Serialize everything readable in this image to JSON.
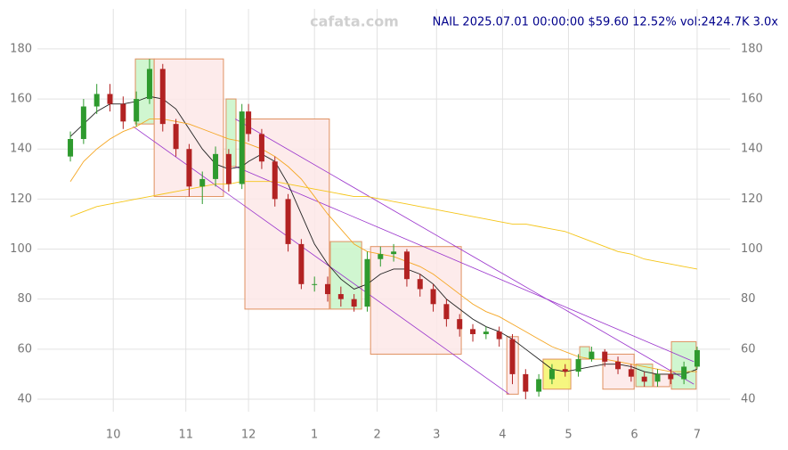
{
  "chart_data": {
    "type": "candlestick",
    "watermark": "cafata.com",
    "title": "NAIL 2025.07.01 00:00:00 $59.60 12.52% vol:2424.7K 3.0x",
    "x": [
      0,
      4,
      8,
      12,
      16,
      20,
      24,
      28,
      32,
      36,
      40,
      44,
      48,
      52,
      54,
      58,
      62,
      66,
      70,
      74,
      78,
      82,
      86,
      90,
      94,
      98,
      102,
      106,
      110,
      114,
      118,
      122,
      126,
      130,
      134,
      138,
      142,
      146,
      150,
      154,
      158,
      162,
      166,
      170,
      174,
      178,
      182,
      186,
      190
    ],
    "open": [
      137,
      144,
      157,
      162,
      158,
      151,
      160,
      172,
      150,
      140,
      125,
      128,
      138,
      126,
      155,
      146,
      135,
      120,
      102,
      86,
      86,
      82,
      80,
      77,
      96,
      98,
      99,
      88,
      84,
      78,
      72,
      68,
      66,
      67,
      64,
      50,
      43,
      48,
      52,
      51,
      56,
      59,
      55,
      52,
      49,
      47,
      50,
      48,
      53
    ],
    "high": [
      147,
      160,
      166,
      166,
      161,
      163,
      176,
      174,
      152,
      142,
      131,
      141,
      140,
      158,
      158,
      148,
      137,
      122,
      104,
      89,
      89,
      85,
      82,
      99,
      101,
      102,
      100,
      90,
      86,
      80,
      74,
      70,
      69,
      69,
      66,
      52,
      50,
      54,
      54,
      58,
      61,
      60,
      57,
      54,
      51,
      52,
      52,
      55,
      61
    ],
    "low": [
      135,
      142,
      154,
      155,
      148,
      149,
      158,
      147,
      137,
      121,
      118,
      125,
      123,
      124,
      143,
      132,
      117,
      99,
      84,
      83,
      79,
      77,
      75,
      75,
      93,
      95,
      85,
      81,
      75,
      69,
      65,
      63,
      64,
      61,
      46,
      40,
      41,
      46,
      49,
      49,
      55,
      53,
      50,
      47,
      45,
      45,
      46,
      46,
      52
    ],
    "close": [
      144,
      157,
      162,
      158,
      151,
      160,
      172,
      150,
      140,
      125,
      128,
      138,
      126,
      155,
      146,
      135,
      120,
      102,
      86,
      86,
      82,
      80,
      77,
      96,
      98,
      99,
      88,
      84,
      78,
      72,
      68,
      66,
      67,
      64,
      50,
      43,
      48,
      52,
      51,
      56,
      59,
      55,
      52,
      49,
      47,
      50,
      48,
      53,
      59.6
    ],
    "up_color": "#2e9a2e",
    "down_color": "#b22222",
    "series": [
      {
        "color": "#222222",
        "values": [
          145,
          150,
          155,
          158,
          158,
          159,
          161,
          160,
          156,
          148,
          140,
          134,
          132,
          133,
          135,
          138,
          135,
          126,
          114,
          102,
          94,
          88,
          84,
          86,
          90,
          92,
          92,
          90,
          86,
          80,
          76,
          72,
          69,
          67,
          64,
          60,
          56,
          52,
          51,
          52,
          53,
          54,
          54,
          53,
          51,
          50,
          50,
          50,
          52
        ]
      },
      {
        "color": "#f5a623",
        "values": [
          127,
          135,
          140,
          144,
          147,
          149,
          152,
          152,
          151,
          150,
          148,
          146,
          144,
          143,
          142,
          140,
          137,
          133,
          128,
          121,
          114,
          108,
          102,
          99,
          98,
          97,
          95,
          93,
          90,
          86,
          82,
          78,
          75,
          73,
          70,
          67,
          64,
          61,
          59,
          57,
          56,
          56,
          55,
          54,
          53,
          52,
          51,
          51,
          51
        ]
      },
      {
        "color": "#f5c518",
        "values": [
          113,
          115,
          117,
          118,
          119,
          120,
          121,
          122,
          123,
          124,
          125,
          126,
          126,
          127,
          127,
          127,
          127,
          126,
          125,
          124,
          123,
          122,
          121,
          121,
          120,
          119,
          118,
          117,
          116,
          115,
          114,
          113,
          112,
          111,
          110,
          110,
          109,
          108,
          107,
          105,
          103,
          101,
          99,
          98,
          96,
          95,
          94,
          93,
          92
        ]
      }
    ],
    "boxes": [
      {
        "x0": 19.7,
        "x1": 25.4,
        "low": 150,
        "high": 176,
        "color": "#c8f5c8"
      },
      {
        "x0": 25.4,
        "x1": 46.4,
        "low": 121,
        "high": 176,
        "color": "#fde8e8"
      },
      {
        "x0": 47.2,
        "x1": 50.2,
        "low": 133,
        "high": 160,
        "color": "#c8f5c8"
      },
      {
        "x0": 52.9,
        "x1": 78.5,
        "low": 76,
        "high": 152,
        "color": "#fde8e8"
      },
      {
        "x0": 78.8,
        "x1": 88.3,
        "low": 76,
        "high": 103,
        "color": "#c8f5c8"
      },
      {
        "x0": 91,
        "x1": 118.5,
        "low": 58,
        "high": 101,
        "color": "#fde8e8"
      },
      {
        "x0": 132.3,
        "x1": 135.8,
        "low": 42,
        "high": 65,
        "color": "#fde8e8"
      },
      {
        "x0": 143.3,
        "x1": 151.7,
        "low": 44,
        "high": 56,
        "color": "#f5f56a"
      },
      {
        "x0": 154.4,
        "x1": 157.4,
        "low": 56,
        "high": 61,
        "color": "#c8f5c8"
      },
      {
        "x0": 161.4,
        "x1": 170.9,
        "low": 44,
        "high": 58,
        "color": "#fde8e8"
      },
      {
        "x0": 171.4,
        "x1": 176.5,
        "low": 45,
        "high": 54,
        "color": "#c8f5c8"
      },
      {
        "x0": 176.8,
        "x1": 181.7,
        "low": 45,
        "high": 50,
        "color": "#fde8e8"
      },
      {
        "x0": 182.2,
        "x1": 189.7,
        "low": 44,
        "high": 63,
        "color": "#c8f5c8"
      }
    ],
    "box_border": "#e09060",
    "trendlines": [
      {
        "x0": 50,
        "y0": 133,
        "x1": 189,
        "y1": 55
      },
      {
        "x0": 19,
        "y0": 149,
        "x1": 133,
        "y1": 42
      },
      {
        "x0": 50,
        "y0": 152,
        "x1": 189,
        "y1": 46
      }
    ],
    "trend_color": "#9932cc",
    "xlim": [
      -10,
      200
    ],
    "ylim": [
      35,
      196
    ],
    "xticks": [
      {
        "value": 13,
        "label": "10"
      },
      {
        "value": 35,
        "label": "11"
      },
      {
        "value": 54,
        "label": "12"
      },
      {
        "value": 74,
        "label": "1"
      },
      {
        "value": 93,
        "label": "2"
      },
      {
        "value": 111,
        "label": "3"
      },
      {
        "value": 131,
        "label": "4"
      },
      {
        "value": 151,
        "label": "5"
      },
      {
        "value": 171,
        "label": "6"
      },
      {
        "value": 190,
        "label": "7"
      }
    ],
    "yticks": [
      40,
      60,
      80,
      100,
      120,
      140,
      160,
      180
    ],
    "grid": true
  }
}
